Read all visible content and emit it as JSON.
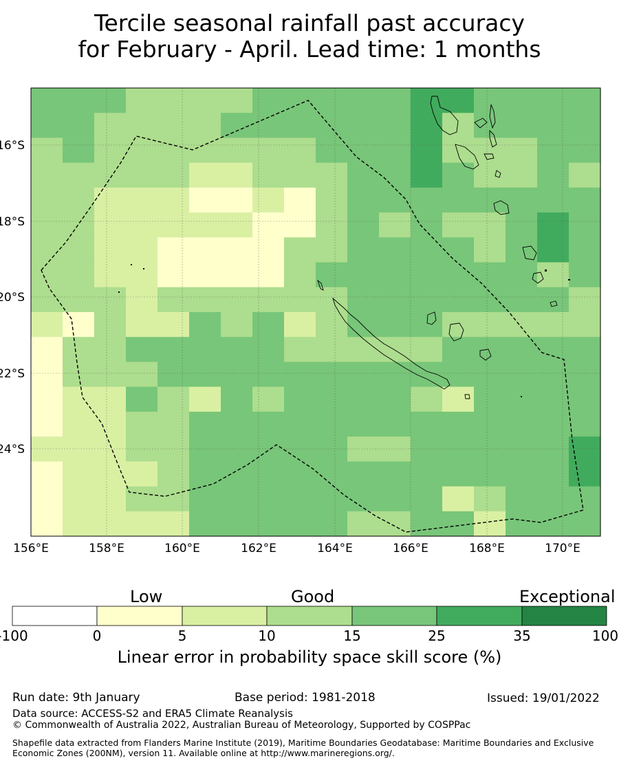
{
  "title": {
    "line1": "Tercile seasonal rainfall past accuracy",
    "line2": "for February - April. Lead time: 1 months"
  },
  "map": {
    "lon_labels": [
      "156°E",
      "158°E",
      "160°E",
      "162°E",
      "164°E",
      "166°E",
      "168°E",
      "170°E"
    ],
    "lat_labels": [
      "16°S",
      "18°S",
      "20°S",
      "22°S",
      "24°S"
    ],
    "boundary_style": "dashed"
  },
  "colorbar": {
    "categories": [
      "Low",
      "Good",
      "Exceptional"
    ],
    "ticks": [
      "-100",
      "0",
      "5",
      "10",
      "15",
      "25",
      "35",
      "100"
    ],
    "colors": [
      "#ffffff",
      "#ffffcc",
      "#d9f0a3",
      "#addd8e",
      "#78c679",
      "#41ab5d",
      "#238443"
    ],
    "label": "Linear error in probability space skill score (%)"
  },
  "footer": {
    "run_date": "Run date: 9th January",
    "base_period": "Base period: 1981-2018",
    "issued": "Issued: 19/01/2022",
    "data_source": "Data source: ACCESS-S2 and ERA5 Climate Reanalysis",
    "copyright": "© Commonwealth of Australia 2022, Australian Bureau of Meteorology, Supported by COSPPac",
    "shapefile": "Shapefile data extracted from Flanders Marine Institute (2019), Maritime Boundaries Geodatabase: Maritime Boundaries and Exclusive Economic Zones (200NM), version 11. Available online at http://www.marineregions.org/."
  }
}
